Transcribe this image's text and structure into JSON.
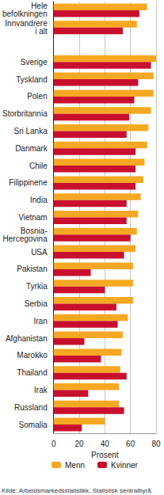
{
  "chart_data": {
    "type": "bar",
    "orientation": "horizontal",
    "categories": [
      "Hele befolkningen",
      "Innvandrere i alt",
      null,
      "Sverige",
      "Tyskland",
      "Polen",
      "Storbritannia",
      "Sri Lanka",
      "Danmark",
      "Chile",
      "Filippinene",
      "India",
      "Vietnam",
      "Bosnia-Hercegovina",
      "USA",
      "Pakistan",
      "Tyrkia",
      "Serbia",
      "Iran",
      "Afghanistan",
      "Marokko",
      "Thailand",
      "Irak",
      "Russland",
      "Somalia"
    ],
    "series": [
      {
        "name": "Menn",
        "color": "#f7a823",
        "values": [
          73,
          65,
          null,
          80,
          78,
          78,
          76,
          74,
          73,
          71,
          70,
          68,
          66,
          65,
          64,
          62,
          62,
          62,
          58,
          54,
          53,
          52,
          51,
          51,
          40
        ]
      },
      {
        "name": "Kvinner",
        "color": "#c8102e",
        "values": [
          67,
          54,
          null,
          76,
          66,
          63,
          59,
          57,
          64,
          64,
          64,
          57,
          57,
          60,
          55,
          29,
          40,
          49,
          50,
          24,
          37,
          57,
          27,
          55,
          22
        ]
      }
    ],
    "x_label": "Prosent",
    "xlim": [
      0,
      80
    ],
    "xticks": [
      0,
      20,
      40,
      60,
      80
    ],
    "grid": true,
    "legend": "bottom",
    "note": "Kilde: Arbeidsmarkedsstatistikk, Statistisk sentralbyrå."
  }
}
